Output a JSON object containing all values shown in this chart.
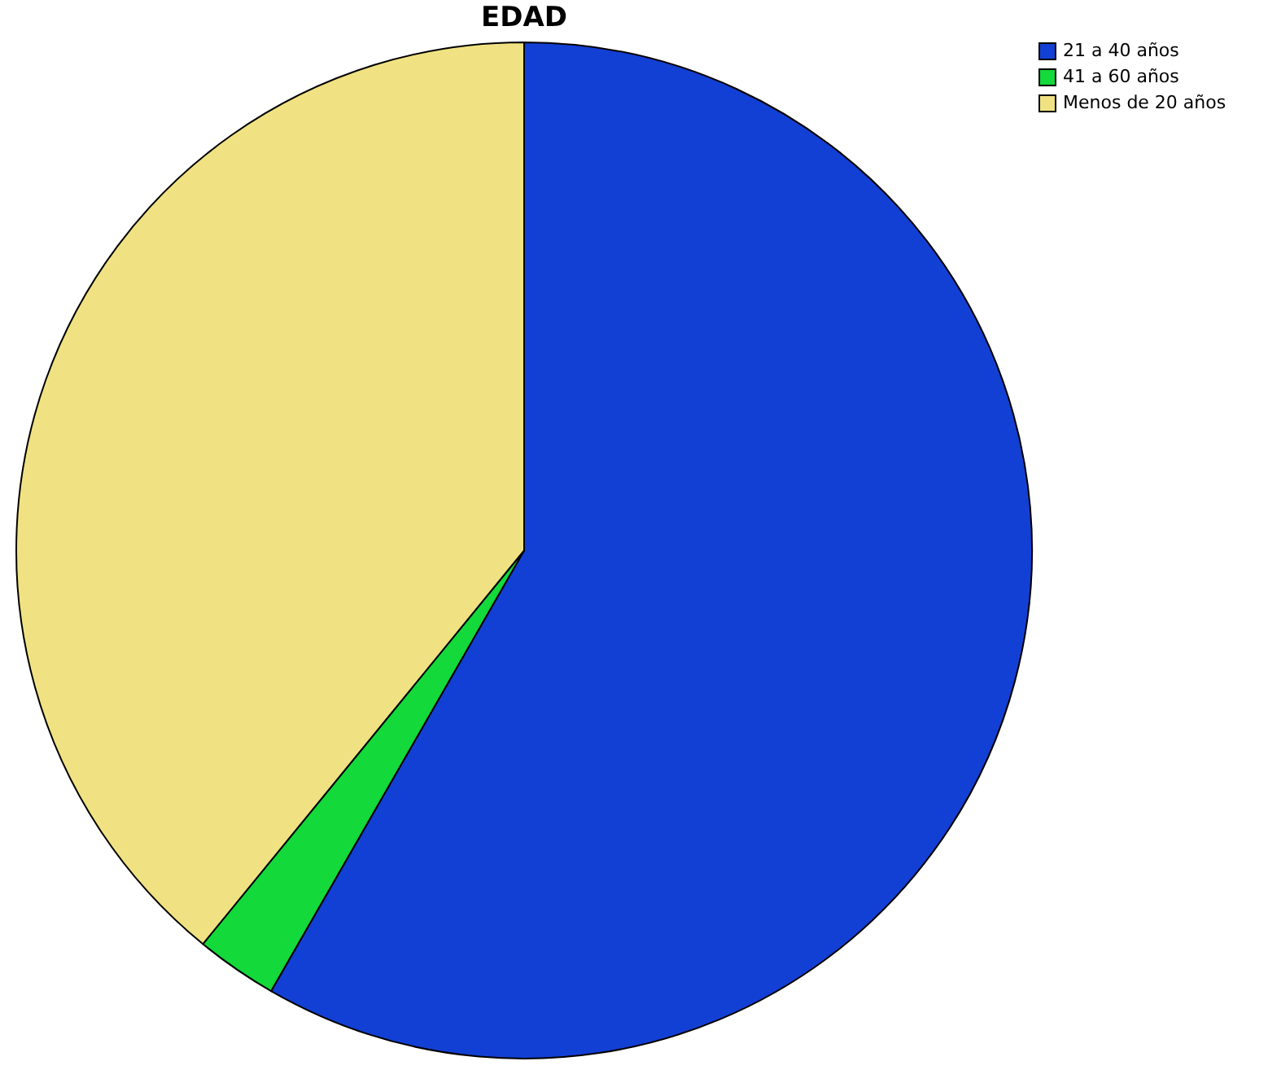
{
  "chart_data": {
    "type": "pie",
    "title": "EDAD",
    "categories": [
      "21 a 40 años",
      "41 a 60 años",
      "Menos de 20 años"
    ],
    "values": [
      58.3,
      2.6,
      39.1
    ],
    "colors": [
      "#1340d4",
      "#13d93a",
      "#f0e282"
    ],
    "legend": "top right"
  }
}
